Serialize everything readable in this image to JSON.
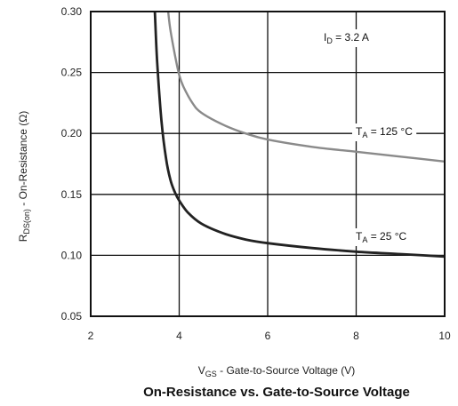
{
  "chart_data": {
    "type": "line",
    "title": "On-Resistance vs. Gate-to-Source Voltage",
    "xlabel": {
      "main": "V",
      "sub": "GS",
      "rest": " - Gate-to-Source Voltage (V)"
    },
    "ylabel": {
      "main": "R",
      "sub": "DS(on)",
      "rest": " - On-Resistance (Ω)"
    },
    "xlim": [
      2,
      10
    ],
    "ylim": [
      0.05,
      0.3
    ],
    "grid": true,
    "x_ticks": [
      2,
      4,
      6,
      8,
      10
    ],
    "x_tick_labels": [
      "2",
      "4",
      "6",
      "8",
      "10"
    ],
    "y_ticks": [
      0.05,
      0.1,
      0.15,
      0.2,
      0.25,
      0.3
    ],
    "y_tick_labels": [
      "0.05",
      "0.10",
      "0.15",
      "0.20",
      "0.25",
      "0.30"
    ],
    "annotations": {
      "condition": {
        "main": "I",
        "sub": "D",
        "rest": " = 3.2 A"
      },
      "hot": {
        "main": "T",
        "sub": "A",
        "rest": " = 125 °C"
      },
      "cold": {
        "main": "T",
        "sub": "A",
        "rest": " = 25 °C"
      }
    },
    "series": [
      {
        "temperature": "125 °C",
        "color": "#8a8a8a",
        "x": [
          3.75,
          3.8,
          3.9,
          4.0,
          4.1,
          4.3,
          4.5,
          5.0,
          5.5,
          6.0,
          7.0,
          8.0,
          9.0,
          10.0
        ],
        "y": [
          0.3,
          0.285,
          0.265,
          0.248,
          0.238,
          0.225,
          0.217,
          0.207,
          0.2,
          0.195,
          0.189,
          0.185,
          0.181,
          0.177
        ]
      },
      {
        "temperature": "25 °C",
        "color": "#222222",
        "x": [
          3.45,
          3.5,
          3.6,
          3.7,
          3.8,
          3.9,
          4.0,
          4.2,
          4.5,
          5.0,
          5.5,
          6.0,
          7.0,
          8.0,
          9.0,
          10.0
        ],
        "y": [
          0.3,
          0.26,
          0.21,
          0.18,
          0.162,
          0.152,
          0.145,
          0.135,
          0.126,
          0.118,
          0.113,
          0.11,
          0.106,
          0.103,
          0.101,
          0.099
        ]
      }
    ]
  }
}
